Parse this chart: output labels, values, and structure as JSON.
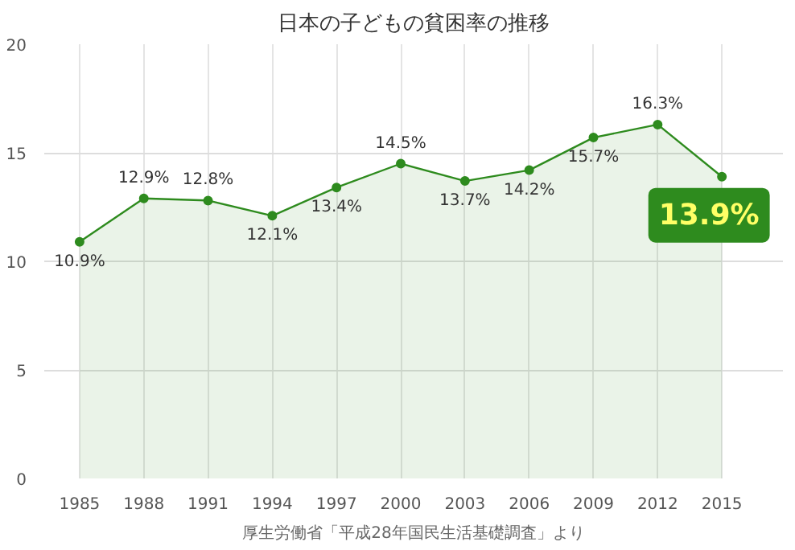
{
  "chart_data": {
    "type": "area",
    "title": "日本の子どもの貧困率の推移",
    "categories": [
      "1985",
      "1988",
      "1991",
      "1994",
      "1997",
      "2000",
      "2003",
      "2006",
      "2009",
      "2012",
      "2015"
    ],
    "series": [
      {
        "color": "#2e8b1e",
        "values": [
          10.9,
          12.9,
          12.8,
          12.1,
          13.4,
          14.5,
          13.7,
          14.2,
          15.7,
          16.3,
          13.9
        ]
      }
    ],
    "value_labels": [
      "10.9%",
      "12.9%",
      "12.8%",
      "12.1%",
      "13.4%",
      "14.5%",
      "13.7%",
      "14.2%",
      "15.7%",
      "16.3%",
      "13.9%"
    ],
    "ylim": [
      0,
      20
    ],
    "yticks": [
      0,
      5,
      10,
      15,
      20
    ],
    "grid": true,
    "marker": "circle",
    "annotations": [
      "厚生労働省「平成28年国民生活基礎調査」より"
    ]
  }
}
